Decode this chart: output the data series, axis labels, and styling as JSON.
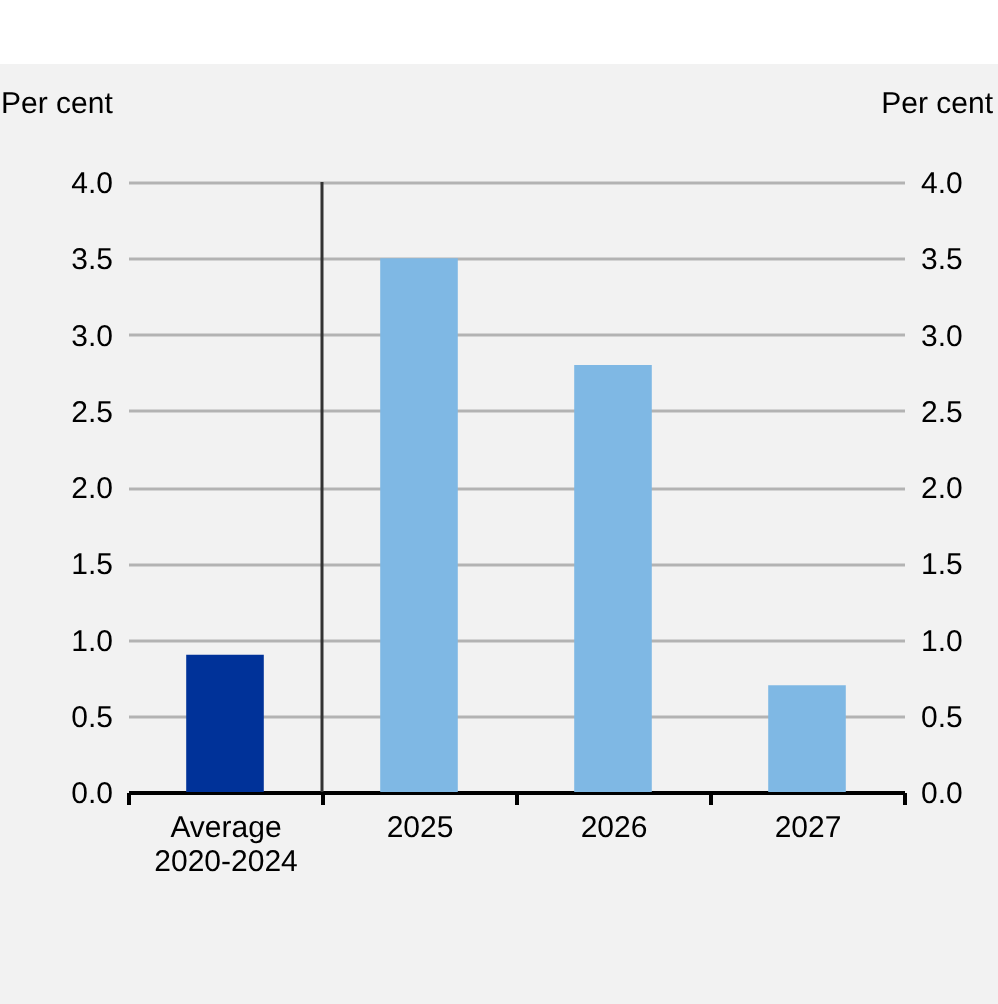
{
  "chart_data": {
    "type": "bar",
    "categories": [
      "Average 2020-2024",
      "2025",
      "2026",
      "2027"
    ],
    "values": [
      0.9,
      3.5,
      2.8,
      0.7
    ],
    "colors": [
      "#003299",
      "#7fb8e4",
      "#7fb8e4",
      "#7fb8e4"
    ],
    "ylabel": "Per cent",
    "y2label": "Per cent",
    "ylim": [
      0,
      4
    ],
    "yticks": [
      {
        "value": 0,
        "label": "0.0"
      },
      0.5,
      {
        "value": 1,
        "label": "1.0"
      },
      1.5,
      {
        "value": 2,
        "label": "2.0"
      },
      2.5,
      {
        "value": 3,
        "label": "3.0"
      },
      3.5,
      {
        "value": 4,
        "label": "4.0"
      }
    ],
    "y2lim": [
      0,
      4
    ],
    "y2ticks": [
      {
        "value": 0,
        "label": "0.0"
      },
      0.5,
      {
        "value": 1,
        "label": "1.0"
      },
      1.5,
      {
        "value": 2,
        "label": "2.0"
      },
      2.5,
      {
        "value": 3,
        "label": "3.0"
      },
      3.5,
      {
        "value": 4,
        "label": "4.0"
      }
    ],
    "ref_lines": [
      {
        "axis": "x",
        "value": "2025",
        "color": "#333333"
      }
    ],
    "grid": "y"
  }
}
